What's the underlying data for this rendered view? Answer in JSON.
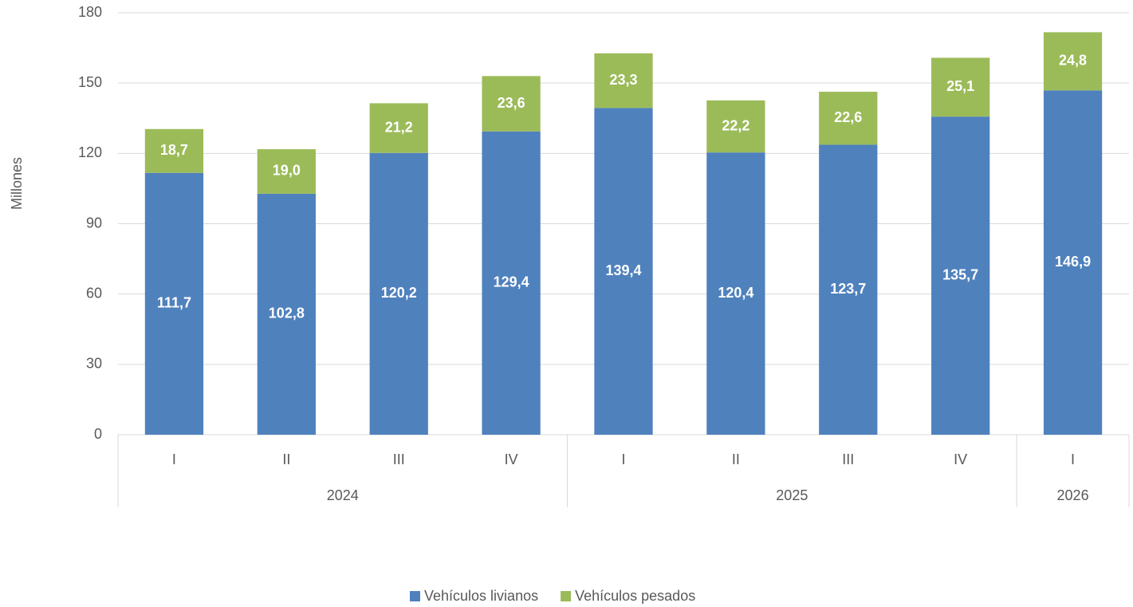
{
  "chart_data": {
    "type": "stacked_bar",
    "ylabel": "Millones",
    "groups": [
      {
        "label": "2024",
        "categories": [
          "I",
          "II",
          "III",
          "IV"
        ]
      },
      {
        "label": "2025",
        "categories": [
          "I",
          "II",
          "III",
          "IV"
        ]
      },
      {
        "label": "2026",
        "categories": [
          "I"
        ]
      }
    ],
    "series": [
      {
        "name": "Vehículos livianos",
        "color": "#4f81bd",
        "values": [
          111.7,
          102.8,
          120.2,
          129.4,
          139.4,
          120.4,
          123.7,
          135.7,
          146.9
        ],
        "value_labels": [
          "111,7",
          "102,8",
          "120,2",
          "129,4",
          "139,4",
          "120,4",
          "123,7",
          "135,7",
          "146,9"
        ]
      },
      {
        "name": "Vehículos pesados",
        "color": "#9bbb59",
        "values": [
          18.7,
          19.0,
          21.2,
          23.6,
          23.3,
          22.2,
          22.6,
          25.1,
          24.8
        ],
        "value_labels": [
          "18,7",
          "19,0",
          "21,2",
          "23,6",
          "23,3",
          "22,2",
          "22,6",
          "25,1",
          "24,8"
        ]
      }
    ],
    "ylim": [
      0,
      180
    ],
    "yticks": [
      0,
      30,
      60,
      90,
      120,
      150,
      180
    ],
    "grid": true,
    "legend": "bottom"
  }
}
